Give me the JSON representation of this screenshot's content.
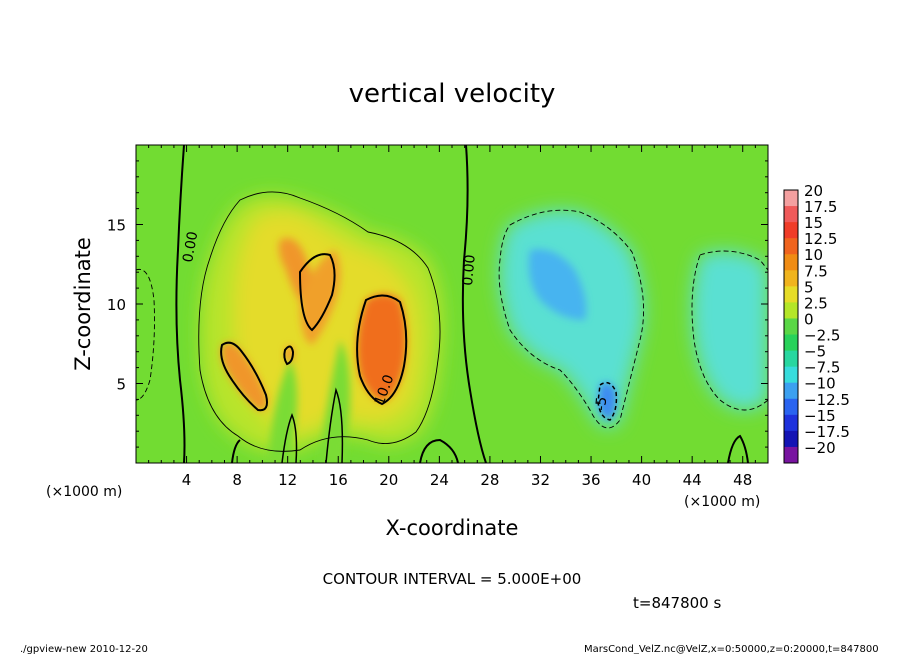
{
  "chart_data": {
    "type": "heatmap",
    "title": "vertical velocity",
    "xlabel": "X-coordinate",
    "ylabel": "Z-coordinate",
    "x_unit": "(×1000 m)",
    "xlim": [
      0,
      50
    ],
    "ylim": [
      0,
      20
    ],
    "xticks": [
      "4",
      "8",
      "12",
      "16",
      "20",
      "24",
      "28",
      "32",
      "36",
      "40",
      "44",
      "48"
    ],
    "yticks": [
      "5",
      "10",
      "15"
    ],
    "colorbar": {
      "levels": [
        "20",
        "17.5",
        "15",
        "12.5",
        "10",
        "7.5",
        "5",
        "2.5",
        "0",
        "−2.5",
        "−5",
        "−7.5",
        "−10",
        "−12.5",
        "−15",
        "−17.5",
        "−20"
      ],
      "colors": [
        "#f4a0a0",
        "#f05a5a",
        "#f03c28",
        "#f0641e",
        "#f08c14",
        "#f0b41e",
        "#e6dc28",
        "#b4e628",
        "#5ad746",
        "#28d25a",
        "#28d7a0",
        "#37dcdc",
        "#3ca0f0",
        "#2a64f0",
        "#1e32dc",
        "#1414b4",
        "#7814a0"
      ]
    },
    "contour_labels": [
      "0.00",
      "0.00",
      "10.0",
      "-5"
    ],
    "contour_interval_text": "CONTOUR INTERVAL = 5.000E+00",
    "time_text": "t=847800 s"
  },
  "footer": {
    "left": "./gpview-new  2010-12-20",
    "right": "MarsCond_VelZ.nc@VelZ,x=0:50000,z=0:20000,t=847800"
  }
}
